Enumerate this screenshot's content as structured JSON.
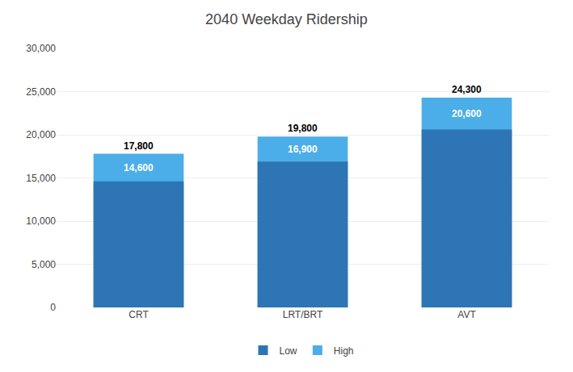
{
  "chart_data": {
    "type": "bar",
    "title": "2040 Weekday Ridership",
    "categories": [
      "CRT",
      "LRT/BRT",
      "AVT"
    ],
    "series": [
      {
        "name": "Low",
        "color": "#2E75B6",
        "values": [
          14600,
          16900,
          20600
        ],
        "value_labels": [
          "14,600",
          "16,900",
          "20,600"
        ]
      },
      {
        "name": "High",
        "color": "#4BAEE8",
        "values": [
          17800,
          19800,
          24300
        ],
        "value_labels": [
          "17,800",
          "19,800",
          "24,300"
        ]
      }
    ],
    "ylim": [
      0,
      30000
    ],
    "yticks": [
      0,
      {
        "value": 5000,
        "label": "5,000"
      },
      {
        "value": 10000,
        "label": "10,000"
      },
      {
        "value": 15000,
        "label": "15,000"
      },
      {
        "value": 20000,
        "label": "20,000"
      },
      {
        "value": 25000,
        "label": "25,000"
      },
      {
        "value": 30000,
        "label": "30,000"
      }
    ],
    "grid": true,
    "legend": "bottom",
    "data_labels": true
  }
}
